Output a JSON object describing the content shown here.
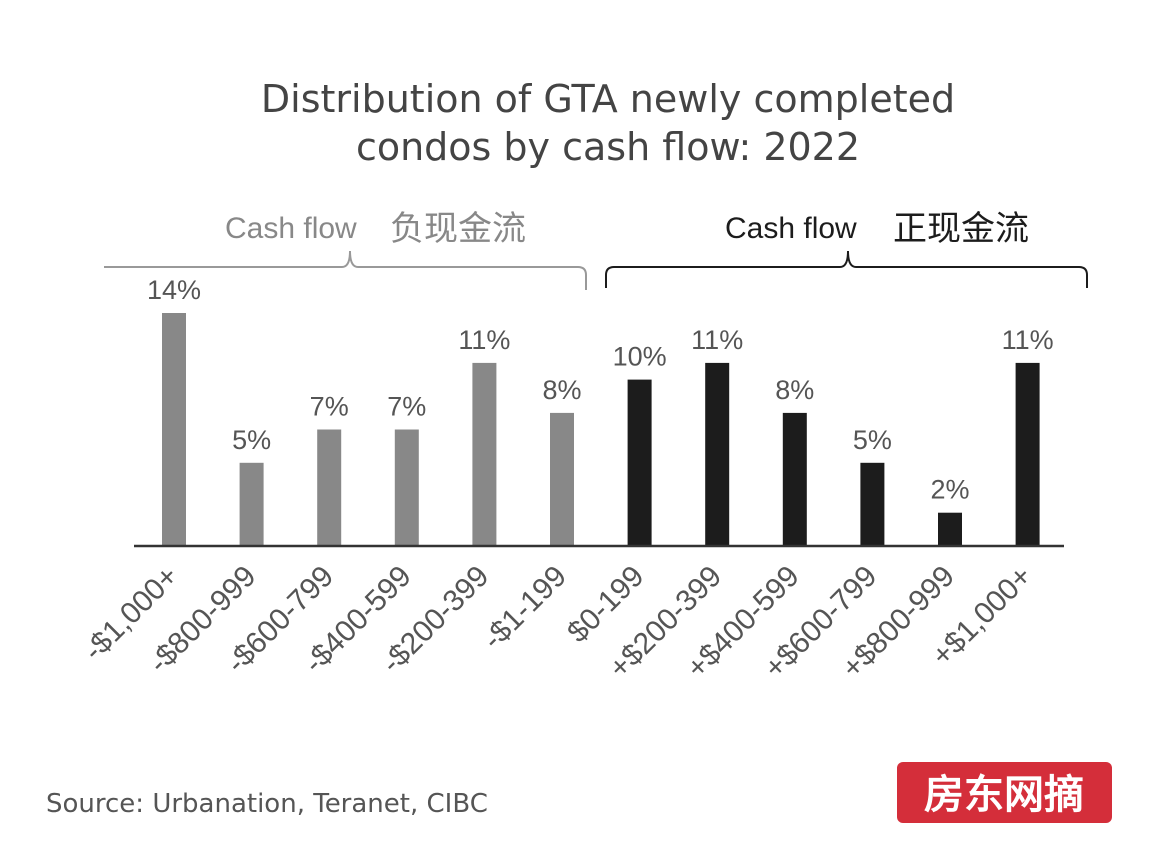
{
  "chart_data": {
    "type": "bar",
    "title_lines": [
      "Distribution of GTA newly completed",
      "condos by cash flow: 2022"
    ],
    "categories": [
      "-$1,000+",
      "-$800-999",
      "-$600-799",
      "-$400-599",
      "-$200-399",
      "-$1-199",
      "$0-199",
      "+$200-399",
      "+$400-599",
      "+$600-799",
      "+$800-999",
      "+$1,000+"
    ],
    "values": [
      14,
      5,
      7,
      7,
      11,
      8,
      10,
      11,
      8,
      5,
      2,
      11
    ],
    "value_labels": [
      "14%",
      "5%",
      "7%",
      "7%",
      "11%",
      "8%",
      "10%",
      "11%",
      "8%",
      "5%",
      "2%",
      "11%"
    ],
    "groups": [
      {
        "label": "Cash flow",
        "label_cn": "负现金流",
        "from": 0,
        "to": 5,
        "color": "#888888"
      },
      {
        "label": "Cash flow",
        "label_cn": "正现金流",
        "from": 6,
        "to": 11,
        "color": "#1c1c1c"
      }
    ],
    "ylim": [
      0,
      14
    ],
    "grid": false,
    "legend": "none"
  },
  "source": "Source: Urbanation, Teranet, CIBC",
  "watermark": "房东网摘"
}
